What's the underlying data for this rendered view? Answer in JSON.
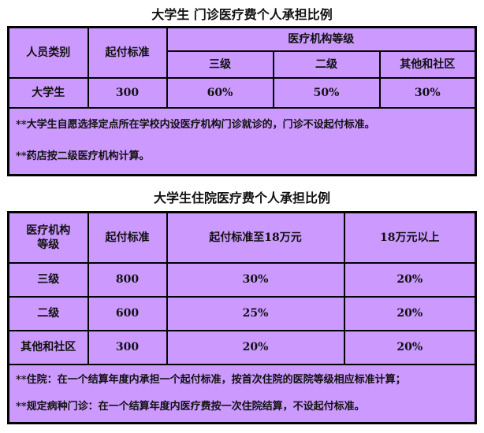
{
  "outpatient": {
    "title": "大学生 门诊医疗费个人承担比例",
    "headers": {
      "category": "人员类别",
      "deductible": "起付标准",
      "level_group": "医疗机构等级",
      "levels": [
        "三级",
        "二级",
        "其他和社区"
      ]
    },
    "rows": [
      {
        "category": "大学生",
        "deductible": "300",
        "rates": [
          "60%",
          "50%",
          "30%"
        ]
      }
    ],
    "notes": [
      "**大学生自愿选择定点所在学校内设医疗机构门诊就诊的，门诊不设起付标准。",
      "**药店按二级医疗机构计算。"
    ]
  },
  "inpatient": {
    "title": "大学生住院医疗费个人承担比例",
    "headers": [
      "医疗机构等级",
      "起付标准",
      "起付标准至18万元",
      "18万元以上"
    ],
    "rows": [
      {
        "level": "三级",
        "deductible": "800",
        "rate_to_18w": "30%",
        "rate_above_18w": "20%"
      },
      {
        "level": "二级",
        "deductible": "600",
        "rate_to_18w": "25%",
        "rate_above_18w": "20%"
      },
      {
        "level": "其他和社区",
        "deductible": "300",
        "rate_to_18w": "20%",
        "rate_above_18w": "20%"
      }
    ],
    "notes": [
      "**住院：在一个结算年度内承担一个起付标准，按首次住院的医院等级相应标准计算；",
      "**规定病种门诊：在一个结算年度内医疗费按一次住院结算，不设起付标准。"
    ]
  },
  "colors": {
    "cell_background": "#cc99ff",
    "border": "#000000"
  }
}
